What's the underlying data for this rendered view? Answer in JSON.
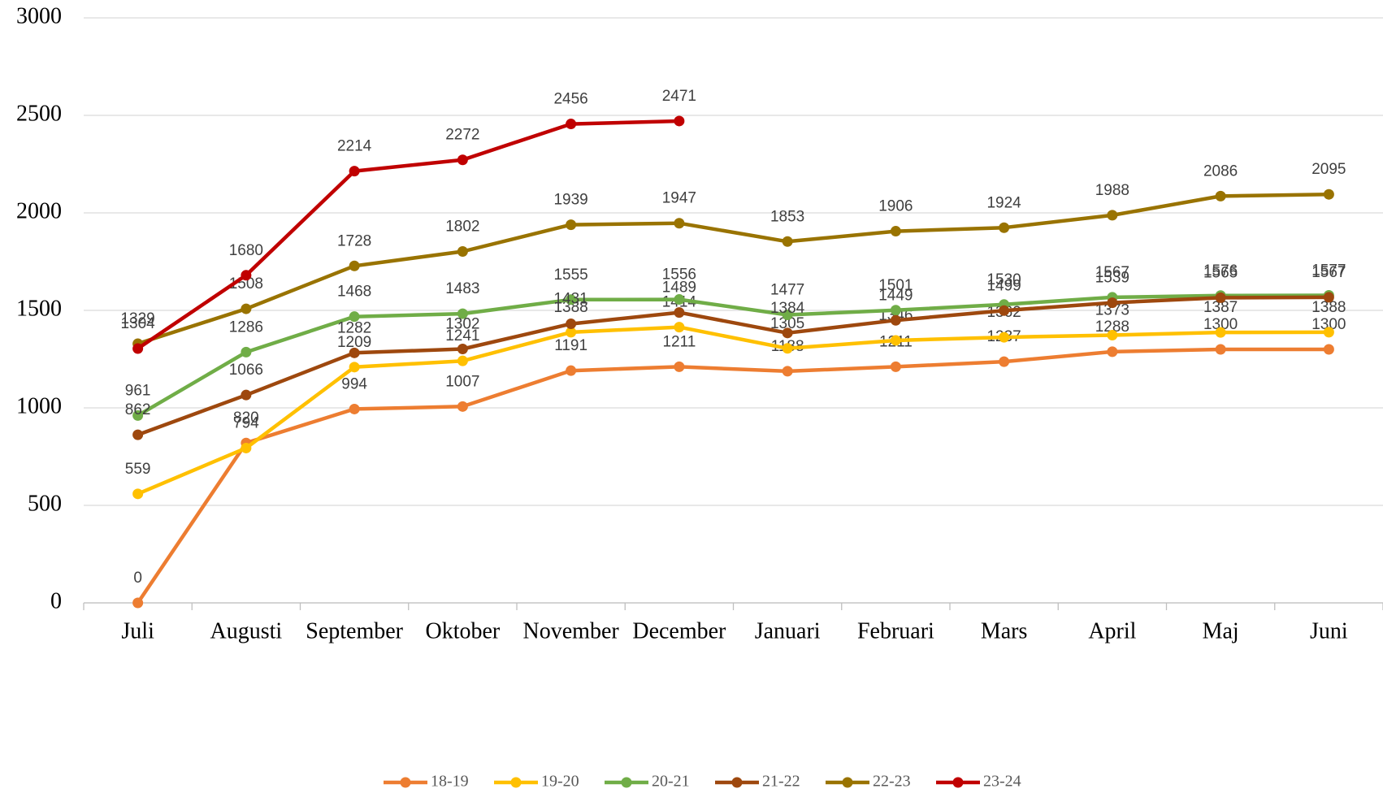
{
  "chart_data": {
    "type": "line",
    "categories": [
      "Juli",
      "Augusti",
      "September",
      "Oktober",
      "November",
      "December",
      "Januari",
      "Februari",
      "Mars",
      "April",
      "Maj",
      "Juni"
    ],
    "series": [
      {
        "name": "18-19",
        "color": "#ED7D31",
        "values": [
          0,
          820,
          994,
          1007,
          1191,
          1211,
          1188,
          1211,
          1237,
          1288,
          1300,
          1300
        ]
      },
      {
        "name": "19-20",
        "color": "#FFC000",
        "values": [
          559,
          794,
          1209,
          1241,
          1388,
          1414,
          1305,
          1346,
          1362,
          1373,
          1387,
          1388
        ]
      },
      {
        "name": "20-21",
        "color": "#70AD47",
        "values": [
          961,
          1286,
          1468,
          1483,
          1555,
          1556,
          1477,
          1501,
          1530,
          1567,
          1576,
          1577
        ]
      },
      {
        "name": "21-22",
        "color": "#9E480E",
        "values": [
          862,
          1066,
          1282,
          1302,
          1431,
          1489,
          1384,
          1449,
          1499,
          1539,
          1565,
          1567
        ]
      },
      {
        "name": "22-23",
        "color": "#997300",
        "values": [
          1329,
          1508,
          1728,
          1802,
          1939,
          1947,
          1853,
          1906,
          1924,
          1988,
          2086,
          2095
        ]
      },
      {
        "name": "23-24",
        "color": "#C00000",
        "values": [
          1304,
          1680,
          2214,
          2272,
          2456,
          2471,
          null,
          null,
          null,
          null,
          null,
          null
        ]
      }
    ],
    "ylim": [
      0,
      3000
    ],
    "yticks": [
      0,
      500,
      1000,
      1500,
      2000,
      2500,
      3000
    ],
    "grid": true,
    "legend": "bottom"
  }
}
